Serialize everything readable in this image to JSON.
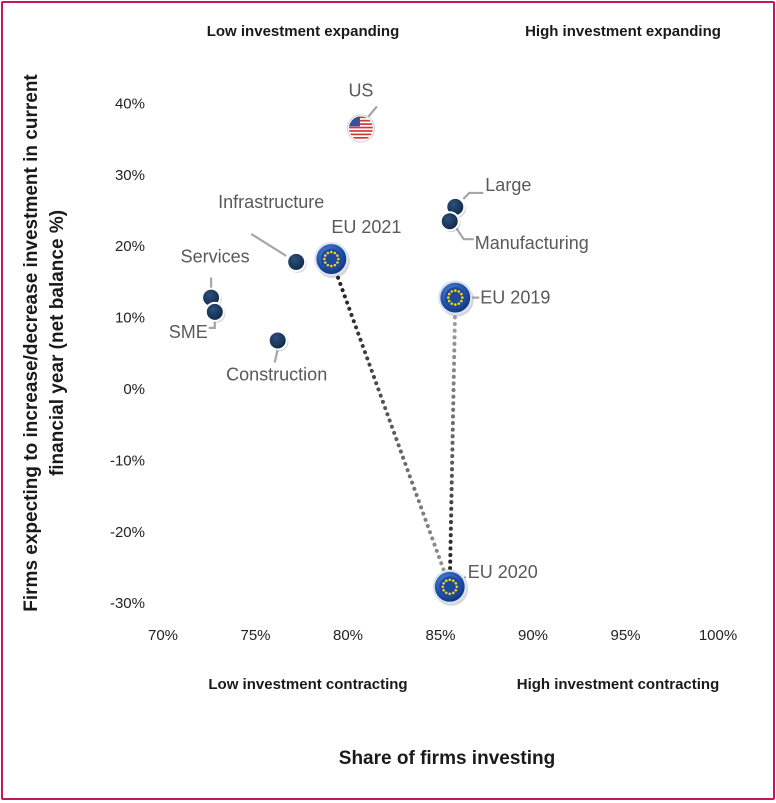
{
  "chart_data": {
    "type": "scatter",
    "xlabel": "Share of firms investing",
    "ylabel_line1": "Firms expecting to increase/decrease investment in current",
    "ylabel_line2": "financial year  (net balance %)",
    "xlim": [
      70,
      100
    ],
    "ylim": [
      -32,
      44
    ],
    "x_ticks": [
      {
        "value": 70,
        "label": "70%"
      },
      {
        "value": 75,
        "label": "75%"
      },
      {
        "value": 80,
        "label": "80%"
      },
      {
        "value": 85,
        "label": "85%"
      },
      {
        "value": 90,
        "label": "90%"
      },
      {
        "value": 95,
        "label": "95%"
      },
      {
        "value": 100,
        "label": "100%"
      }
    ],
    "y_ticks": [
      {
        "value": 40,
        "label": "40%"
      },
      {
        "value": 30,
        "label": "30%"
      },
      {
        "value": 20,
        "label": "20%"
      },
      {
        "value": 10,
        "label": "10%"
      },
      {
        "value": 0,
        "label": "0%"
      },
      {
        "value": -10,
        "label": "-10%"
      },
      {
        "value": -20,
        "label": "-20%"
      },
      {
        "value": -30,
        "label": "-30%"
      }
    ],
    "quadrant_labels": {
      "top_left": "Low investment expanding",
      "top_right": "High investment expanding",
      "bottom_left": "Low investment contracting",
      "bottom_right": "High investment contracting"
    },
    "points": [
      {
        "name": "US",
        "x": 80.7,
        "y": 36.5,
        "style": "us"
      },
      {
        "name": "Large",
        "x": 85.8,
        "y": 25.5,
        "style": "dot"
      },
      {
        "name": "Manufacturing",
        "x": 85.5,
        "y": 23.5,
        "style": "dot"
      },
      {
        "name": "Infrastructure",
        "x": 77.2,
        "y": 17.8,
        "style": "dot"
      },
      {
        "name": "EU 2021",
        "x": 79.1,
        "y": 18.2,
        "style": "eu"
      },
      {
        "name": "Services",
        "x": 72.6,
        "y": 12.8,
        "style": "dot"
      },
      {
        "name": "SME",
        "x": 72.8,
        "y": 10.8,
        "style": "dot"
      },
      {
        "name": "Construction",
        "x": 76.2,
        "y": 6.8,
        "style": "dot"
      },
      {
        "name": "EU 2019",
        "x": 85.8,
        "y": 12.8,
        "style": "eu"
      },
      {
        "name": "EU 2020",
        "x": 85.5,
        "y": -27.7,
        "style": "eu"
      }
    ],
    "paths": [
      {
        "from": "EU 2021",
        "to": "EU 2020"
      },
      {
        "from": "EU 2019",
        "to": "EU 2020"
      }
    ]
  }
}
